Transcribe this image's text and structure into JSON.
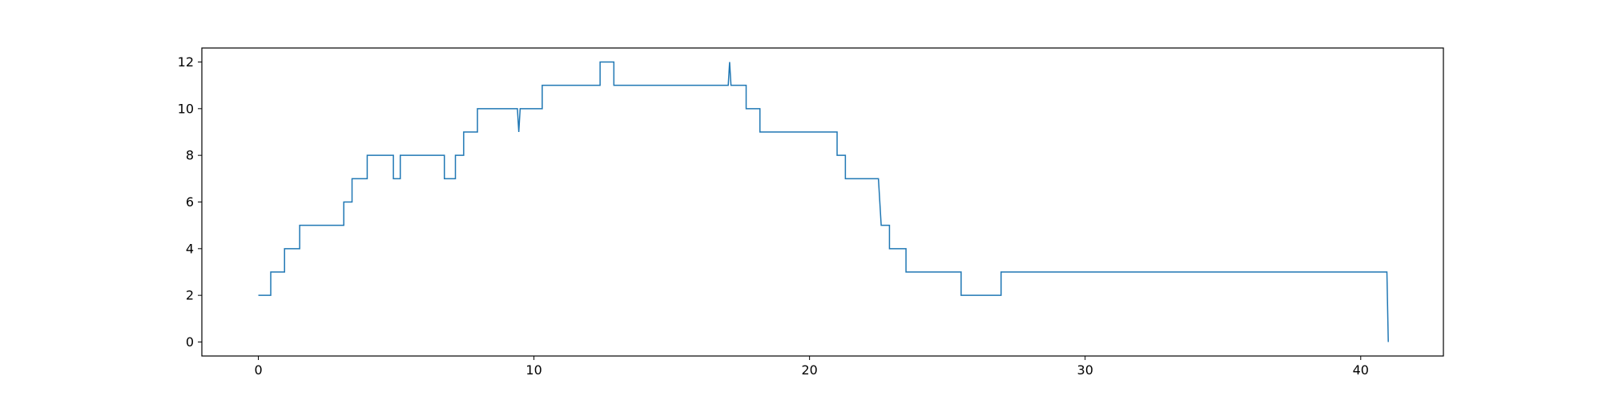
{
  "chart_data": {
    "type": "line",
    "title": "",
    "xlabel": "",
    "ylabel": "",
    "xlim": [
      -2.05,
      43.0
    ],
    "ylim": [
      -0.6,
      12.6
    ],
    "x_ticks": [
      0,
      10,
      20,
      30,
      40
    ],
    "y_ticks": [
      0,
      2,
      4,
      6,
      8,
      10,
      12
    ],
    "grid": false,
    "legend": "none",
    "line_color": "#1f77b4",
    "series": [
      {
        "x": [
          0.0,
          0.45,
          0.45,
          0.95,
          0.95,
          1.5,
          1.5,
          3.1,
          3.1,
          3.4,
          3.4,
          3.95,
          3.95,
          4.9,
          4.9,
          5.15,
          5.15,
          6.75,
          6.75,
          7.15,
          7.15,
          7.45,
          7.45,
          7.95,
          7.95,
          9.4,
          9.45,
          9.5,
          9.5,
          10.3,
          10.3,
          12.4,
          12.4,
          12.9,
          12.9,
          17.05,
          17.1,
          17.15,
          17.15,
          17.7,
          17.7,
          18.2,
          18.2,
          21.0,
          21.0,
          21.3,
          21.3,
          22.5,
          22.55,
          22.55,
          22.6,
          22.6,
          22.9,
          22.9,
          23.5,
          23.5,
          25.5,
          25.5,
          26.95,
          26.95,
          40.95,
          41.0
        ],
        "y": [
          2,
          2,
          3,
          3,
          4,
          4,
          5,
          5,
          6,
          6,
          7,
          7,
          8,
          8,
          7,
          7,
          8,
          8,
          7,
          7,
          8,
          8,
          9,
          9,
          10,
          10,
          9,
          10,
          10,
          10,
          11,
          11,
          12,
          12,
          11,
          11,
          12,
          11,
          11,
          11,
          10,
          10,
          9,
          9,
          8,
          8,
          7,
          7,
          6,
          6,
          5,
          5,
          5,
          4,
          4,
          3,
          3,
          2,
          2,
          3,
          3,
          0
        ]
      }
    ]
  }
}
